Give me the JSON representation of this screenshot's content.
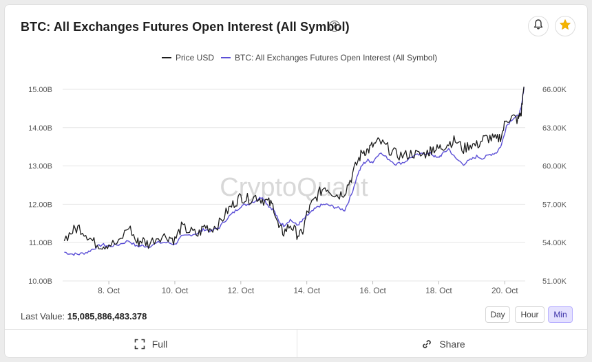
{
  "header": {
    "title": "BTC: All Exchanges Futures Open Interest (All Symbol)",
    "help_icon": "question-circle-icon",
    "alert_icon": "bell-icon",
    "favorite_icon": "star-icon"
  },
  "colors": {
    "price": "#1c1c1c",
    "open_interest": "#5b4fd6",
    "favorite": "#f5b400",
    "active_range": "#e4e1ff",
    "grid": "#e6e6e6"
  },
  "chart_data": {
    "type": "line",
    "watermark": "CryptoQuant",
    "x_ticks": [
      "8. Oct",
      "10. Oct",
      "12. Oct",
      "14. Oct",
      "16. Oct",
      "18. Oct",
      "20. Oct"
    ],
    "x_tick_days": [
      8,
      10,
      12,
      14,
      16,
      18,
      20
    ],
    "x_range_days": [
      6.6,
      20.62
    ],
    "y_left": {
      "ticks": [
        "10.00B",
        "11.00B",
        "12.00B",
        "13.00B",
        "14.00B",
        "15.00B"
      ],
      "range": [
        10.0,
        15.0
      ],
      "unit": "B"
    },
    "y_right": {
      "ticks": [
        "51.00K",
        "54.00K",
        "57.00K",
        "60.00K",
        "63.00K",
        "66.00K"
      ],
      "range": [
        51.0,
        66.0
      ],
      "unit": "K"
    },
    "grid": true,
    "legend_position": "top-center",
    "series": [
      {
        "name": "Price USD",
        "axis": "right",
        "x_days": [
          6.65,
          6.9,
          7.1,
          7.35,
          7.55,
          7.8,
          8.0,
          8.3,
          8.6,
          8.85,
          9.0,
          9.2,
          9.5,
          9.8,
          10.0,
          10.2,
          10.45,
          10.7,
          10.9,
          11.1,
          11.35,
          11.6,
          11.8,
          12.0,
          12.2,
          12.45,
          12.65,
          12.85,
          13.0,
          13.15,
          13.3,
          13.5,
          13.7,
          13.85,
          14.0,
          14.15,
          14.35,
          14.55,
          14.75,
          14.95,
          15.15,
          15.35,
          15.55,
          15.7,
          15.85,
          16.0,
          16.2,
          16.45,
          16.7,
          16.95,
          17.2,
          17.45,
          17.7,
          17.8,
          17.95,
          18.1,
          18.3,
          18.5,
          18.75,
          18.95,
          19.15,
          19.35,
          19.55,
          19.75,
          19.9,
          20.05,
          20.25,
          20.4,
          20.5,
          20.58
        ],
        "values": [
          54.3,
          54.9,
          55.2,
          54.6,
          54.0,
          53.8,
          53.9,
          53.9,
          55.3,
          54.0,
          54.2,
          53.9,
          54.5,
          54.5,
          54.2,
          55.2,
          54.9,
          54.6,
          55.3,
          55.1,
          55.5,
          56.5,
          57.1,
          57.6,
          57.4,
          57.6,
          57.4,
          57.1,
          56.8,
          55.1,
          54.8,
          55.4,
          54.7,
          54.6,
          56.2,
          57.0,
          57.8,
          58.4,
          58.0,
          57.7,
          58.0,
          59.1,
          60.4,
          61.2,
          61.2,
          61.6,
          61.9,
          61.4,
          60.9,
          60.8,
          61.0,
          60.8,
          61.1,
          61.4,
          61.3,
          61.5,
          61.8,
          62.0,
          61.3,
          61.7,
          61.6,
          62.1,
          62.2,
          62.0,
          62.4,
          63.7,
          63.8,
          63.6,
          64.2,
          66.2
        ]
      },
      {
        "name": "BTC: All Exchanges Futures Open Interest (All Symbol)",
        "axis": "left",
        "x_days": [
          6.65,
          6.9,
          7.1,
          7.35,
          7.55,
          7.8,
          8.0,
          8.3,
          8.6,
          8.85,
          9.0,
          9.2,
          9.5,
          9.8,
          10.0,
          10.2,
          10.45,
          10.7,
          10.9,
          11.1,
          11.35,
          11.6,
          11.8,
          12.0,
          12.2,
          12.45,
          12.65,
          12.85,
          13.0,
          13.15,
          13.3,
          13.5,
          13.7,
          13.85,
          14.0,
          14.15,
          14.35,
          14.55,
          14.75,
          14.95,
          15.15,
          15.35,
          15.55,
          15.7,
          15.85,
          16.0,
          16.2,
          16.45,
          16.7,
          16.95,
          17.2,
          17.45,
          17.7,
          17.8,
          17.95,
          18.1,
          18.3,
          18.5,
          18.75,
          18.95,
          19.15,
          19.35,
          19.55,
          19.75,
          19.9,
          20.05,
          20.25,
          20.4,
          20.5,
          20.58
        ],
        "values": [
          10.75,
          10.7,
          10.7,
          10.75,
          10.85,
          10.95,
          10.9,
          10.95,
          11.05,
          10.9,
          10.92,
          10.9,
          11.0,
          11.0,
          10.95,
          11.15,
          11.2,
          11.25,
          11.35,
          11.3,
          11.4,
          11.65,
          11.8,
          11.95,
          12.0,
          12.1,
          12.2,
          11.95,
          11.85,
          11.55,
          11.45,
          11.6,
          11.45,
          11.55,
          11.7,
          11.8,
          11.95,
          12.0,
          11.95,
          11.9,
          11.85,
          12.25,
          12.8,
          13.05,
          13.15,
          13.1,
          13.35,
          13.2,
          13.05,
          13.1,
          13.25,
          13.3,
          13.35,
          13.3,
          13.2,
          13.3,
          13.45,
          13.2,
          13.05,
          13.15,
          13.25,
          13.2,
          13.3,
          13.35,
          13.55,
          14.05,
          14.25,
          14.3,
          14.5,
          15.05
        ]
      }
    ]
  },
  "last_value": {
    "label": "Last Value:",
    "value": "15,085,886,483.378"
  },
  "range_buttons": [
    {
      "label": "Day",
      "active": false
    },
    {
      "label": "Hour",
      "active": false
    },
    {
      "label": "Min",
      "active": true
    }
  ],
  "footer": {
    "full_label": "Full",
    "full_icon": "expand-icon",
    "share_label": "Share",
    "share_icon": "link-icon"
  }
}
